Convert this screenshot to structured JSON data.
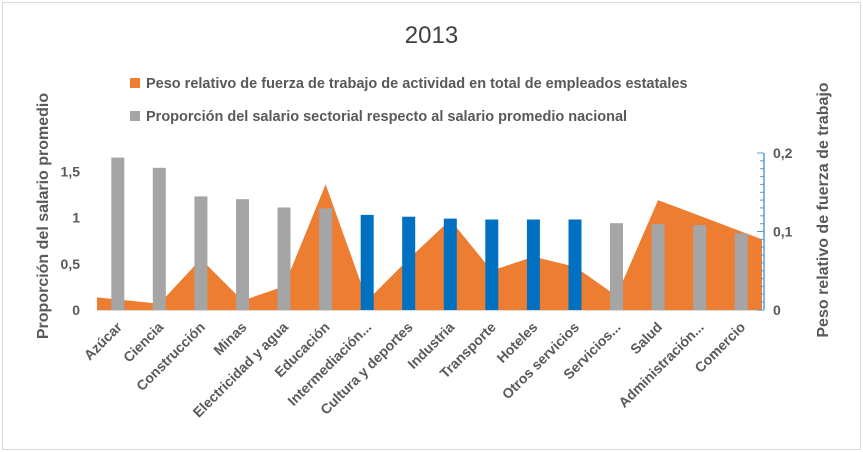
{
  "chart_data": {
    "type": "bar",
    "title": "2013",
    "categories": [
      "Azúcar",
      "Ciencia",
      "Construcción",
      "Minas",
      "Electricidad y agua",
      "Educación",
      "Intermediación...",
      "Cultura y deportes",
      "Industria",
      "Transporte",
      "Hoteles",
      "Otros servicios",
      "Servicios...",
      "Salud",
      "Administración...",
      "Comercio"
    ],
    "ylabel": "Proporción del salario promedio",
    "y2label": "Peso relativo de fuerza de trabajo",
    "ylim": [
      0,
      1.7
    ],
    "y2lim": [
      0,
      0.2
    ],
    "yticks": [
      "0",
      "0,5",
      "1",
      "1,5"
    ],
    "y2ticks": [
      "0",
      "0,1",
      "0,2"
    ],
    "legend_position": "top",
    "series": [
      {
        "name": "Peso relativo de fuerza de trabajo de actividad en total de empleados estatales",
        "type": "area",
        "axis": "secondary",
        "color": "#ed7d31",
        "values": [
          0.016,
          0.008,
          0.065,
          0.012,
          0.03,
          0.16,
          0.012,
          0.065,
          0.115,
          0.05,
          0.068,
          0.055,
          0.018,
          0.14,
          0.12,
          0.09
        ]
      },
      {
        "name": "Proporción del salario sectorial respecto al salario promedio nacional",
        "type": "bar",
        "axis": "primary",
        "color": "#a5a5a5",
        "highlight_color": "#0070c0",
        "highlight_categories": [
          "Intermediación...",
          "Cultura y deportes",
          "Industria",
          "Transporte",
          "Hoteles",
          "Otros servicios"
        ],
        "values": [
          1.65,
          1.54,
          1.23,
          1.2,
          1.11,
          1.1,
          1.03,
          1.01,
          0.99,
          0.98,
          0.98,
          0.98,
          0.94,
          0.93,
          0.92,
          0.83
        ]
      }
    ]
  }
}
